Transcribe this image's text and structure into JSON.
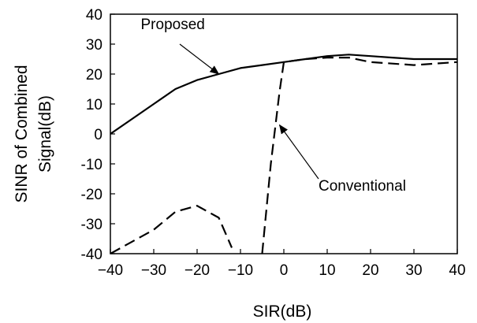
{
  "chart_data": {
    "type": "line",
    "xlabel": "SIR(dB)",
    "ylabel_lines": [
      "SINR of Combined",
      "Signal(dB)"
    ],
    "xlim": [
      -40,
      40
    ],
    "ylim": [
      -40,
      40
    ],
    "x_ticks": [
      -40,
      -30,
      -20,
      -10,
      0,
      10,
      20,
      30,
      40
    ],
    "y_ticks": [
      40,
      30,
      20,
      10,
      0,
      -10,
      -20,
      -30,
      -40
    ],
    "x_tick_labels": [
      "-40",
      "-30",
      "-20",
      "-10",
      "0",
      "10",
      "20",
      "30",
      "40"
    ],
    "y_tick_labels": [
      "40",
      "30",
      "20",
      "10",
      "0",
      "-10",
      "-20",
      "-30",
      "-40"
    ],
    "grid": false,
    "series": [
      {
        "name": "Proposed",
        "style": "solid",
        "color": "#000000",
        "points": [
          [
            -40,
            0
          ],
          [
            -35,
            5
          ],
          [
            -30,
            10
          ],
          [
            -25,
            15
          ],
          [
            -20,
            18
          ],
          [
            -15,
            20
          ],
          [
            -10,
            22
          ],
          [
            -5,
            23
          ],
          [
            0,
            24
          ],
          [
            5,
            25
          ],
          [
            10,
            26
          ],
          [
            15,
            26.5
          ],
          [
            20,
            26
          ],
          [
            25,
            25.5
          ],
          [
            30,
            25
          ],
          [
            35,
            25
          ],
          [
            40,
            25
          ]
        ]
      },
      {
        "name": "Conventional",
        "style": "dashed",
        "color": "#000000",
        "segments": [
          [
            [
              -40,
              -40
            ],
            [
              -35,
              -36
            ],
            [
              -30,
              -32
            ],
            [
              -25,
              -26
            ],
            [
              -20,
              -24
            ],
            [
              -15,
              -28
            ],
            [
              -12,
              -38
            ]
          ],
          [
            [
              -5,
              -40
            ],
            [
              -3,
              -10
            ],
            [
              -1,
              14
            ],
            [
              0,
              24
            ],
            [
              5,
              25
            ],
            [
              10,
              25.5
            ],
            [
              15,
              25.5
            ],
            [
              20,
              24
            ],
            [
              25,
              23.5
            ],
            [
              30,
              23
            ],
            [
              35,
              23.5
            ],
            [
              40,
              24
            ]
          ]
        ]
      }
    ],
    "annotations": [
      {
        "text": "Proposed",
        "label_at": [
          -33,
          35
        ],
        "arrow_from": [
          -24,
          30
        ],
        "arrow_to": [
          -15,
          20
        ]
      },
      {
        "text": "Conventional",
        "label_at": [
          8,
          -19
        ],
        "arrow_from": [
          8,
          -15
        ],
        "arrow_to": [
          -1,
          3
        ]
      }
    ]
  }
}
